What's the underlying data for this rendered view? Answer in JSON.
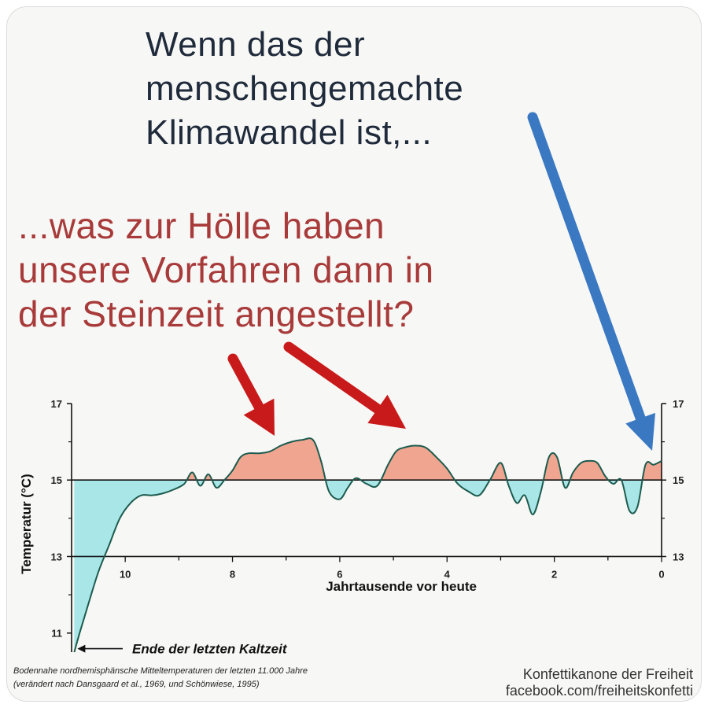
{
  "headline": [
    "Wenn das der",
    "menschengemachte",
    "Klimawandel ist,..."
  ],
  "question": [
    "...was zur Hölle haben",
    "unsere Vorfahren dann in",
    "der Steinzeit angestellt?"
  ],
  "caption": [
    "Bodennahe nordhemisphänsche Mitteltemperaturen der letzten 11.000 Jahre",
    "(verändert nach Dansgaard et al., 1969, und Schönwiese, 1995)"
  ],
  "credit": [
    "Konfettikanone der Freiheit",
    "facebook.com/freiheitskonfetti"
  ],
  "colors": {
    "warm_fill": "#f0a590",
    "cold_fill": "#a8e6e8",
    "curve": "#1d5b4e",
    "red_arrow": "#c81a1a",
    "blue_arrow": "#3a78c2",
    "headline": "#1f2a3b",
    "question": "#a83a3a"
  },
  "chart_data": {
    "type": "area",
    "x_axis": {
      "label": "Jahrtausende vor heute",
      "range": [
        11,
        0
      ],
      "ticks": [
        10,
        8,
        6,
        4,
        2,
        0
      ],
      "reversed": true
    },
    "y_axis": {
      "label": "Temperatur (°C)",
      "range": [
        10.5,
        17
      ],
      "ticks": [
        11,
        13,
        15,
        17
      ],
      "right_ticks": [
        13,
        15,
        17
      ]
    },
    "baseline": 15,
    "series": [
      {
        "x": [
          10.95,
          10.85,
          10.7,
          10.5,
          10.3,
          10.1,
          9.9,
          9.7,
          9.5,
          9.3,
          9.1,
          8.9,
          8.75,
          8.6,
          8.45,
          8.3,
          8.15,
          8.0,
          7.85,
          7.7,
          7.5,
          7.3,
          7.1,
          6.9,
          6.7,
          6.5,
          6.35,
          6.2,
          6.0,
          5.85,
          5.7,
          5.5,
          5.3,
          5.1,
          4.95,
          4.8,
          4.6,
          4.4,
          4.2,
          4.0,
          3.8,
          3.6,
          3.4,
          3.2,
          3.0,
          2.85,
          2.7,
          2.55,
          2.4,
          2.25,
          2.1,
          1.95,
          1.8,
          1.65,
          1.5,
          1.35,
          1.2,
          1.05,
          0.9,
          0.75,
          0.6,
          0.45,
          0.3,
          0.15,
          0.0
        ],
        "y": [
          10.5,
          11.0,
          11.7,
          12.6,
          13.3,
          14.0,
          14.4,
          14.6,
          14.6,
          14.65,
          14.75,
          14.9,
          15.2,
          14.85,
          15.15,
          14.8,
          15.0,
          15.25,
          15.6,
          15.7,
          15.7,
          15.75,
          15.9,
          16.0,
          16.05,
          16.05,
          15.5,
          14.7,
          14.5,
          14.8,
          15.05,
          14.9,
          14.85,
          15.4,
          15.75,
          15.85,
          15.9,
          15.85,
          15.6,
          15.3,
          14.9,
          14.7,
          14.6,
          15.0,
          15.45,
          14.85,
          14.4,
          14.6,
          14.1,
          14.7,
          15.6,
          15.6,
          14.8,
          15.2,
          15.45,
          15.5,
          15.45,
          15.1,
          14.9,
          15.0,
          14.2,
          14.3,
          15.4,
          15.4,
          15.5
        ]
      }
    ],
    "annotations": [
      {
        "text": "Ende der letzten Kaltzeit",
        "x": 10.95,
        "y": 10.55
      }
    ]
  }
}
